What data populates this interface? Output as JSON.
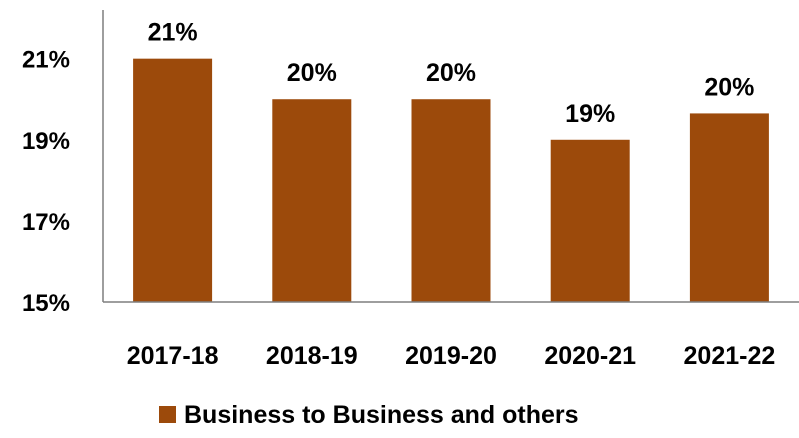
{
  "chart_data": {
    "type": "bar",
    "categories": [
      "2017-18",
      "2018-19",
      "2019-20",
      "2020-21",
      "2021-22"
    ],
    "series": [
      {
        "name": "Business to Business and others",
        "values": [
          21.0,
          20.0,
          20.0,
          19.0,
          19.65
        ],
        "data_labels": [
          "21%",
          "20%",
          "20%",
          "19%",
          "20%"
        ],
        "color": "#9C4A0B"
      }
    ],
    "y_ticks": [
      15,
      17,
      19,
      21
    ],
    "y_tick_labels": [
      "15%",
      "17%",
      "19%",
      "21%"
    ],
    "ylim": [
      15,
      22.2
    ],
    "title": "",
    "xlabel": "",
    "ylabel": "",
    "grid": false,
    "legend_position": "bottom"
  }
}
